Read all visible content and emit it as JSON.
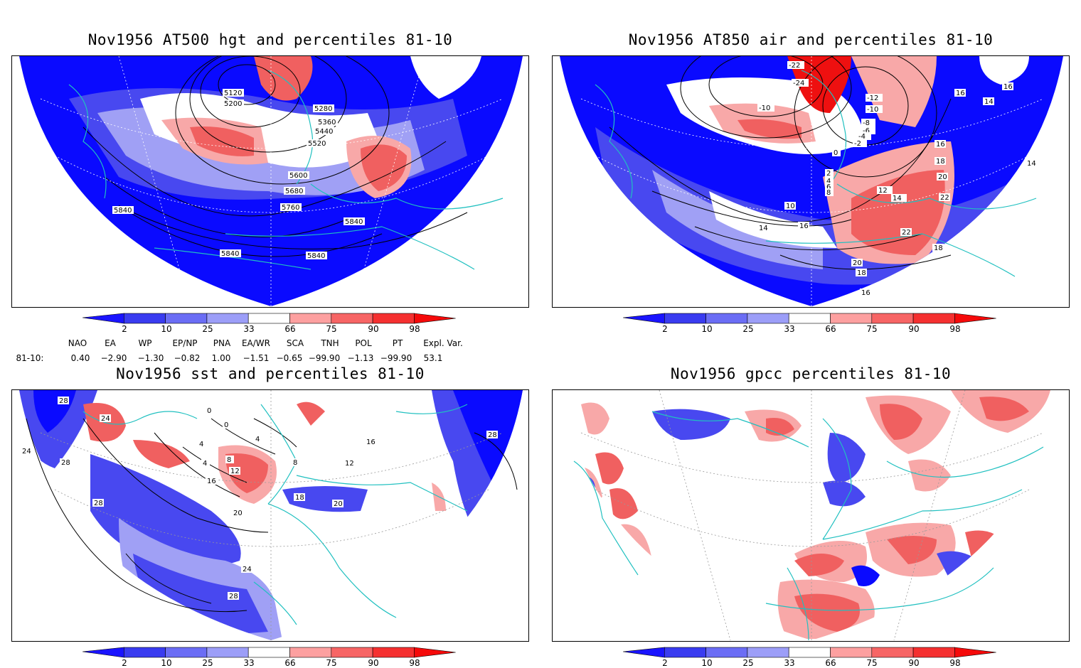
{
  "panels": [
    {
      "title": "Nov1956 AT500 hgt and percentiles 81-10",
      "contour_labels": [
        "5120",
        "5200",
        "5280",
        "5360",
        "5440",
        "5520",
        "5600",
        "5680",
        "5760",
        "5840",
        "5840",
        "5840",
        "5840"
      ]
    },
    {
      "title": "Nov1956 AT850 air and percentiles 81-10",
      "contour_labels": [
        "-22",
        "-24",
        "-10",
        "-12",
        "-10",
        "-8",
        "-6",
        "-4",
        "-2",
        "0",
        "2",
        "4",
        "6",
        "8",
        "10",
        "12",
        "14",
        "14",
        "16",
        "16",
        "16",
        "18",
        "20",
        "22",
        "22",
        "14",
        "16",
        "14",
        "18",
        "20",
        "18",
        "16"
      ]
    },
    {
      "title": "Nov1956 sst and percentiles 81-10",
      "contour_labels": [
        "28",
        "24",
        "28",
        "28",
        "24",
        "0",
        "0",
        "4",
        "4",
        "8",
        "12",
        "16",
        "20",
        "24",
        "28",
        "4",
        "8",
        "12",
        "16",
        "18",
        "20",
        "28"
      ]
    },
    {
      "title": "Nov1956 gpcc percentiles 81-10",
      "contour_labels": []
    }
  ],
  "colorbar": {
    "labels": [
      "2",
      "10",
      "25",
      "33",
      "66",
      "75",
      "90",
      "98"
    ],
    "colors": [
      "#1a14ff",
      "#3a3cf0",
      "#6b6df5",
      "#9c9ef8",
      "#ffffff",
      "#fda0a0",
      "#f76565",
      "#f53030",
      "#f50a0a"
    ]
  },
  "indices": {
    "row_label": "81-10:",
    "headers": [
      "NAO",
      "EA",
      "WP",
      "EP/NP",
      "PNA",
      "EA/WR",
      "SCA",
      "TNH",
      "POL",
      "PT",
      "Expl. Var."
    ],
    "values": [
      "0.40",
      "−2.90",
      "−1.30",
      "−0.82",
      "1.00",
      "−1.51",
      "−0.65",
      "−99.90",
      "−1.13",
      "−99.90",
      "53.1"
    ]
  },
  "colors": {
    "strong_blue": "#0a0aff",
    "mid_blue": "#4848f0",
    "light_blue": "#a0a0f5",
    "light_red": "#f8a8a8",
    "mid_red": "#f06060",
    "strong_red": "#ee1010",
    "coast": "#20c0c0"
  }
}
